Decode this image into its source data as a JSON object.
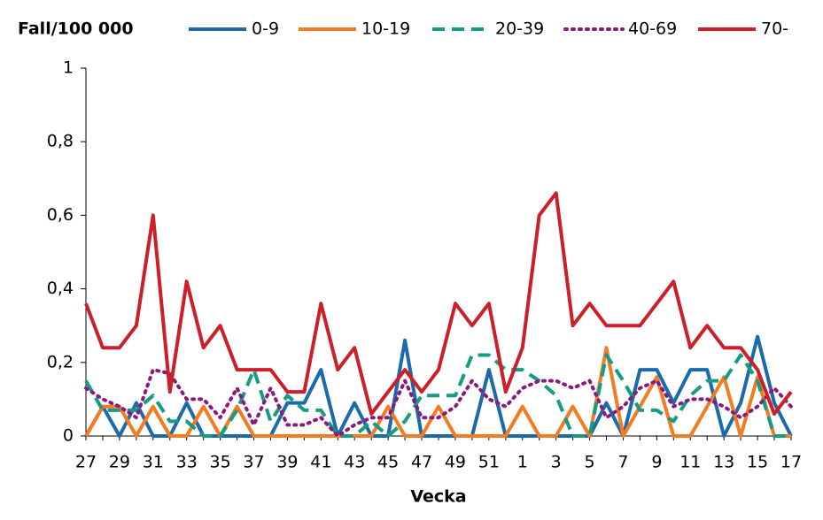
{
  "chart_data": {
    "type": "line",
    "y_label": "Fall/100 000",
    "x_label": "Vecka",
    "categories": [
      "27",
      null,
      "29",
      null,
      "31",
      null,
      "33",
      null,
      "35",
      null,
      "37",
      null,
      "39",
      null,
      "41",
      null,
      "43",
      null,
      "45",
      null,
      "47",
      null,
      "49",
      null,
      "51",
      null,
      "1",
      null,
      "3",
      null,
      "5",
      null,
      "7",
      null,
      "9",
      null,
      "11",
      null,
      "13",
      null,
      "15",
      null,
      "17"
    ],
    "ylim": [
      0,
      1
    ],
    "yticks": [
      0,
      {
        "value": 0.2,
        "label": "0,2"
      },
      {
        "value": 0.4,
        "label": "0,4"
      },
      {
        "value": 0.6,
        "label": "0,6"
      },
      {
        "value": 0.8,
        "label": "0,8"
      },
      1
    ],
    "grid": false,
    "legend": "top",
    "series": [
      {
        "name": "0-9",
        "color": "#1a6aad",
        "dash": "solid",
        "values": [
          0,
          0.08,
          0,
          0.09,
          0,
          0,
          0.09,
          0,
          0,
          0,
          0,
          0,
          0.09,
          0.09,
          0.18,
          0,
          0.09,
          0,
          0,
          0.26,
          0,
          0,
          0,
          0,
          0.18,
          0,
          0,
          0,
          0,
          0,
          0,
          0.09,
          0,
          0.18,
          0.18,
          0.09,
          0.18,
          0.18,
          0,
          0.09,
          0.27,
          0.09,
          0
        ]
      },
      {
        "name": "10-19",
        "color": "#f47b20",
        "dash": "solid",
        "values": [
          0,
          0.08,
          0.08,
          0,
          0.08,
          0,
          0,
          0.08,
          0,
          0.08,
          0,
          0,
          0,
          0,
          0,
          0,
          0,
          0,
          0.08,
          0,
          0,
          0.08,
          0,
          0,
          0,
          0,
          0.08,
          0,
          0,
          0.08,
          0,
          0.24,
          0,
          0.08,
          0.16,
          0,
          0,
          0.08,
          0.16,
          0,
          0.16,
          0,
          0
        ]
      },
      {
        "name": "20-39",
        "color": "#169b84",
        "dash": "dashed",
        "values": [
          0.15,
          0.07,
          0.07,
          0.07,
          0.11,
          0.04,
          0.04,
          0,
          0,
          0.07,
          0.18,
          0.04,
          0.11,
          0.07,
          0.07,
          0,
          0,
          0.04,
          0,
          0.04,
          0.11,
          0.11,
          0.11,
          0.22,
          0.22,
          0.18,
          0.18,
          0.15,
          0.11,
          0,
          0,
          0.22,
          0.15,
          0.07,
          0.07,
          0.04,
          0.11,
          0.15,
          0.15,
          0.22,
          0.15,
          0,
          0
        ]
      },
      {
        "name": "40-69",
        "color": "#8b1a7d",
        "dash": "dotted",
        "values": [
          0.13,
          0.1,
          0.08,
          0.05,
          0.18,
          0.17,
          0.1,
          0.1,
          0.05,
          0.13,
          0.03,
          0.13,
          0.03,
          0.03,
          0.05,
          0,
          0.03,
          0.05,
          0.05,
          0.15,
          0.05,
          0.05,
          0.08,
          0.15,
          0.1,
          0.08,
          0.13,
          0.15,
          0.15,
          0.13,
          0.15,
          0.05,
          0.08,
          0.13,
          0.15,
          0.08,
          0.1,
          0.1,
          0.08,
          0.05,
          0.08,
          0.13,
          0.08
        ]
      },
      {
        "name": "70-",
        "color": "#cc1f2a",
        "dash": "solid",
        "values": [
          0.36,
          0.24,
          0.24,
          0.3,
          0.6,
          0.12,
          0.42,
          0.24,
          0.3,
          0.18,
          0.18,
          0.18,
          0.12,
          0.12,
          0.36,
          0.18,
          0.24,
          0.06,
          0.12,
          0.18,
          0.12,
          0.18,
          0.36,
          0.3,
          0.36,
          0.12,
          0.24,
          0.6,
          0.66,
          0.3,
          0.36,
          0.3,
          0.3,
          0.3,
          0.36,
          0.42,
          0.24,
          0.3,
          0.24,
          0.24,
          0.18,
          0.06,
          0.12
        ]
      }
    ]
  }
}
